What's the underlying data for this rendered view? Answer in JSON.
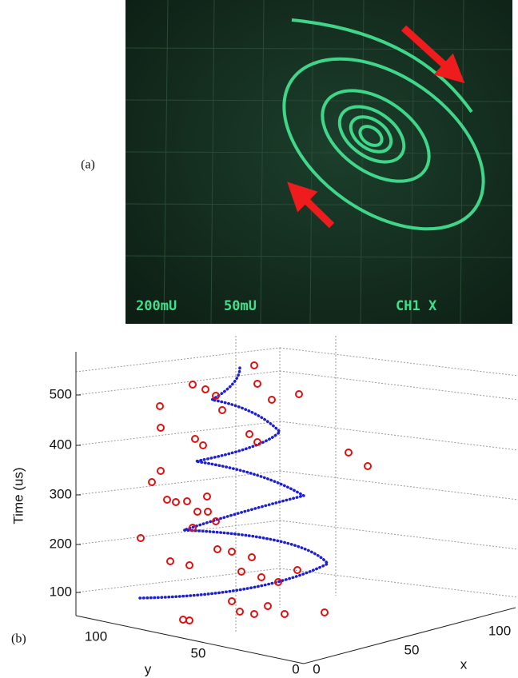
{
  "panel_a": {
    "label": "(a)",
    "screen_texts": [
      "200mU",
      "50mU",
      "CH1 X"
    ]
  },
  "panel_b": {
    "label": "(b)",
    "z_axis_label": "Time (us)",
    "z_ticks": [
      500,
      400,
      300,
      200,
      100
    ],
    "y_axis_label": "y",
    "y_ticks": [
      100,
      50,
      0
    ],
    "x_axis_label": "x",
    "x_ticks": [
      0,
      50,
      100
    ]
  }
}
